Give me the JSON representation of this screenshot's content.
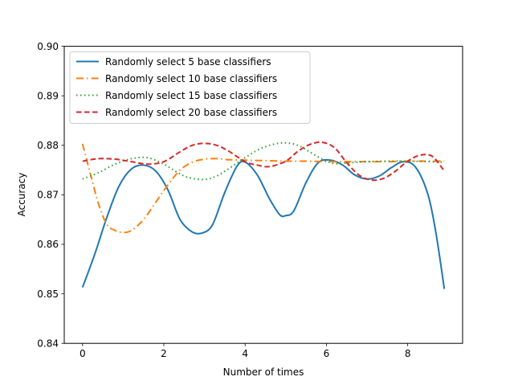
{
  "chart_data": {
    "type": "line",
    "title": "",
    "xlabel": "Number of times",
    "ylabel": "Accuracy",
    "xlim": [
      -0.45,
      9.35
    ],
    "ylim": [
      0.84,
      0.9
    ],
    "xticks": [
      0,
      2,
      4,
      6,
      8
    ],
    "xtick_labels": [
      "0",
      "2",
      "4",
      "6",
      "8"
    ],
    "yticks": [
      0.84,
      0.85,
      0.86,
      0.87,
      0.88,
      0.89,
      0.9
    ],
    "ytick_labels": [
      "0.84",
      "0.85",
      "0.86",
      "0.87",
      "0.88",
      "0.89",
      "0.90"
    ],
    "grid": false,
    "legend_position": "top-left",
    "series": [
      {
        "name": "Randomly select 5 base classifiers",
        "color": "#1f77b4",
        "dash": "solid",
        "x": [
          0,
          0.3,
          0.6,
          0.9,
          1.2,
          1.5,
          1.8,
          2.1,
          2.4,
          2.7,
          2.95,
          3.2,
          3.5,
          3.8,
          4.0,
          4.3,
          4.6,
          4.85,
          5.0,
          5.2,
          5.5,
          5.8,
          6.1,
          6.4,
          6.7,
          7.0,
          7.3,
          7.6,
          7.9,
          8.2,
          8.5,
          8.7,
          8.9
        ],
        "y": [
          0.8513,
          0.858,
          0.8655,
          0.8718,
          0.8752,
          0.876,
          0.8748,
          0.871,
          0.865,
          0.8625,
          0.8623,
          0.864,
          0.8705,
          0.8758,
          0.8766,
          0.874,
          0.8692,
          0.866,
          0.8658,
          0.8668,
          0.8725,
          0.8765,
          0.877,
          0.876,
          0.874,
          0.8732,
          0.8738,
          0.8755,
          0.8767,
          0.8755,
          0.87,
          0.862,
          0.851
        ]
      },
      {
        "name": "Randomly select 10 base classifiers",
        "color": "#ff7f0e",
        "dash": "dashdot",
        "x": [
          0,
          0.2,
          0.4,
          0.6,
          0.8,
          1.0,
          1.2,
          1.5,
          1.8,
          2.1,
          2.4,
          2.7,
          3.0,
          3.3,
          3.6,
          4.0,
          4.5,
          5.0,
          5.5,
          6.0,
          6.5,
          7.0,
          7.5,
          8.0,
          8.5,
          8.9
        ],
        "y": [
          0.8803,
          0.874,
          0.868,
          0.864,
          0.8628,
          0.8624,
          0.8628,
          0.865,
          0.8685,
          0.872,
          0.875,
          0.8766,
          0.8772,
          0.8773,
          0.8771,
          0.877,
          0.8769,
          0.8768,
          0.8768,
          0.8767,
          0.8767,
          0.8767,
          0.8767,
          0.8768,
          0.8768,
          0.8768
        ]
      },
      {
        "name": "Randomly select 15 base classifiers",
        "color": "#2ca02c",
        "dash": "dotted",
        "x": [
          0,
          0.4,
          0.8,
          1.2,
          1.6,
          2.0,
          2.3,
          2.6,
          3.0,
          3.3,
          3.6,
          4.0,
          4.3,
          4.6,
          4.95,
          5.3,
          5.6,
          5.9,
          6.2,
          6.6,
          7.0,
          7.5,
          8.0,
          8.5,
          8.9
        ],
        "y": [
          0.8732,
          0.8745,
          0.8762,
          0.8773,
          0.8775,
          0.8762,
          0.8747,
          0.8735,
          0.8731,
          0.8738,
          0.8753,
          0.8775,
          0.879,
          0.88,
          0.8805,
          0.88,
          0.8786,
          0.8772,
          0.8763,
          0.8765,
          0.8767,
          0.8768,
          0.8768,
          0.8767,
          0.8766
        ]
      },
      {
        "name": "Randomly select 20 base classifiers",
        "color": "#d62728",
        "dash": "dashed",
        "x": [
          0,
          0.4,
          0.8,
          1.2,
          1.6,
          2.0,
          2.4,
          2.7,
          3.0,
          3.3,
          3.6,
          4.0,
          4.3,
          4.6,
          5.0,
          5.3,
          5.6,
          5.9,
          6.2,
          6.5,
          6.8,
          7.1,
          7.4,
          7.7,
          8.0,
          8.3,
          8.6,
          8.9
        ],
        "y": [
          0.8768,
          0.8773,
          0.8772,
          0.8767,
          0.8762,
          0.8767,
          0.8787,
          0.88,
          0.8804,
          0.88,
          0.8788,
          0.8767,
          0.876,
          0.8757,
          0.8768,
          0.8788,
          0.8802,
          0.8806,
          0.8795,
          0.8765,
          0.874,
          0.873,
          0.8733,
          0.8748,
          0.8768,
          0.878,
          0.8778,
          0.8748
        ]
      }
    ]
  }
}
